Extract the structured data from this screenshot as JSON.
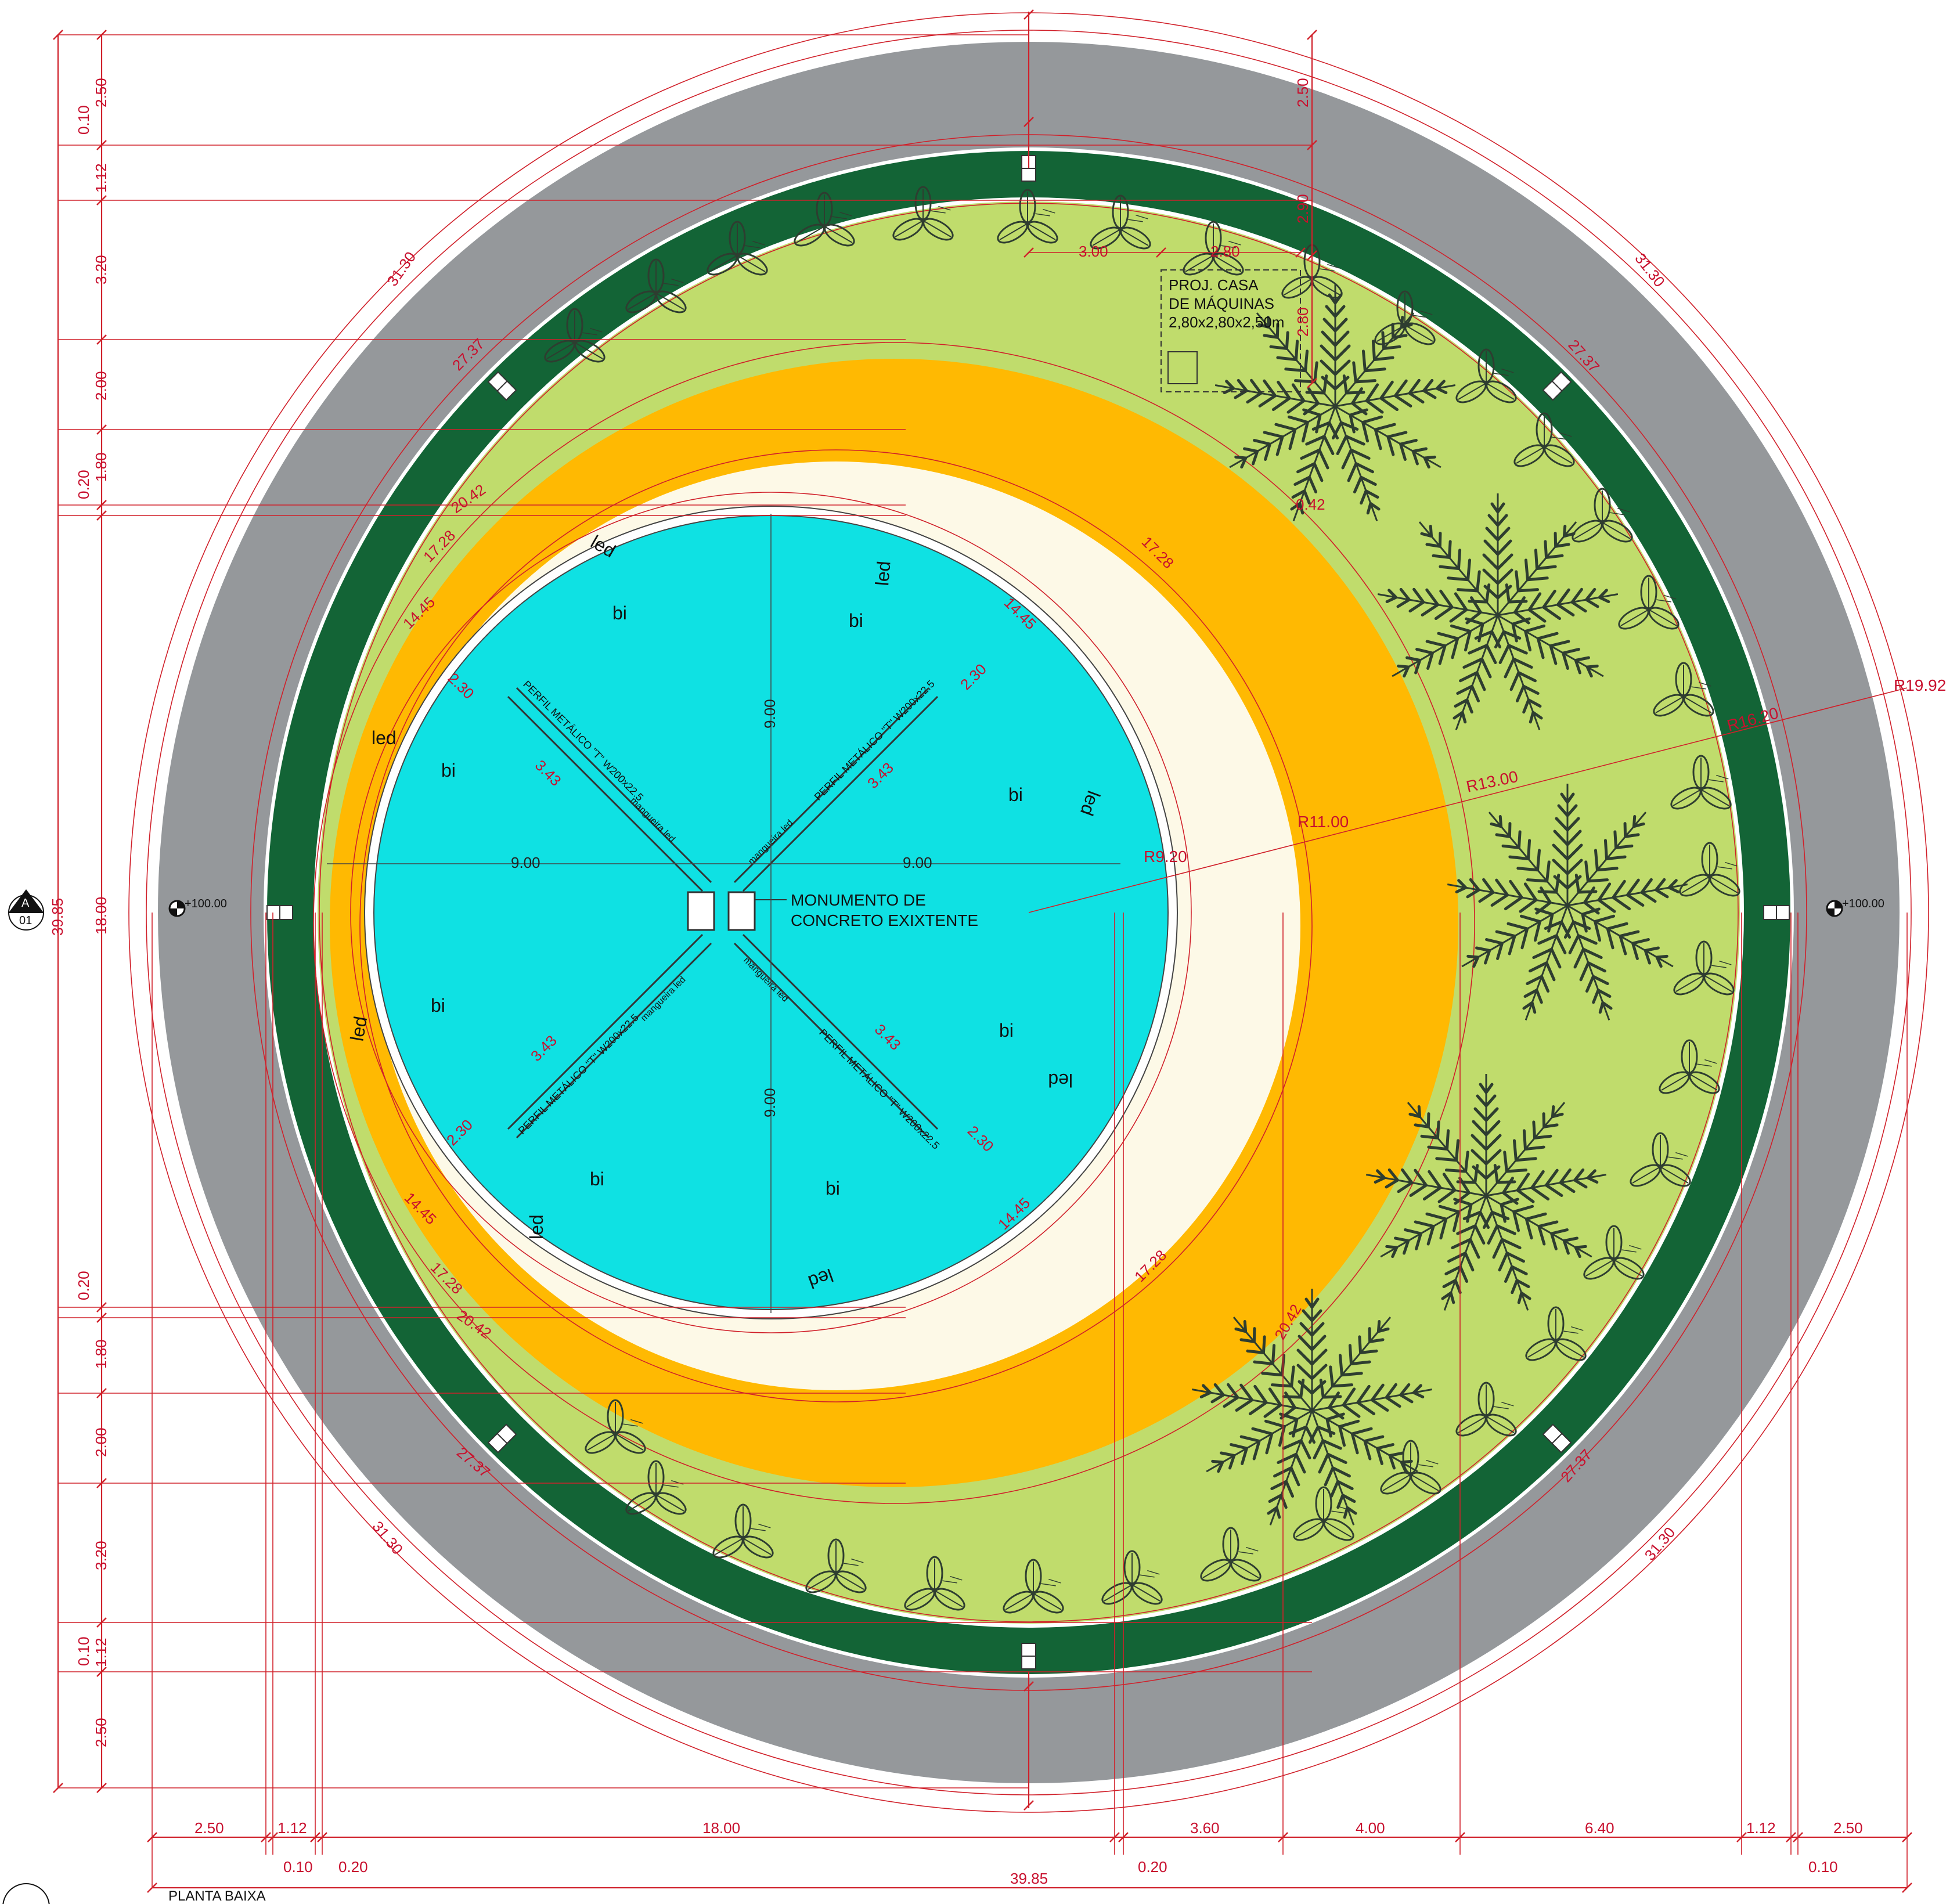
{
  "drawing": {
    "view_title": "PLANTA BAIXA",
    "section_marker": {
      "letter": "A",
      "sheet": "01"
    },
    "level_left": "+100.00",
    "level_right": "+100.00",
    "monument_label_1": "MONUMENTO DE",
    "monument_label_2": "CONCRETO EXIXTENTE",
    "machine_room_1": "PROJ. CASA",
    "machine_room_2": "DE MÁQUINAS",
    "machine_room_3": "2,80x2,80x2,50m",
    "beam_label": "PERFIL METÁLICO \"T\" W200x22.5",
    "hose_label": "mangueira led",
    "led_label": "led",
    "bi_label": "bi"
  },
  "colors": {
    "road": "#95989b",
    "dark_green": "#136436",
    "light_green": "#c0dc6c",
    "orange": "#ffb902",
    "cream": "#fdf9e7",
    "water": "#0fe1e3",
    "dim_red": "#c8102e",
    "plants": "#2e3d30"
  },
  "dimensions": {
    "arc_31_30": "31.30",
    "arc_27_37": "27.37",
    "arc_20_42": "20.42",
    "arc_17_28": "17.28",
    "arc_14_45": "14.45",
    "r19_92": "R19.92",
    "r16_20": "R16.20",
    "r13_00": "R13.00",
    "r11_00": "R11.00",
    "r9_20": "R9.20",
    "d2_30": "2.30",
    "d3_43": "3.43",
    "d9_00": "9.00",
    "d2_80": "2.80",
    "d3_00": "3.00",
    "d2_90": "2.90",
    "d0_42": "0.42",
    "left": [
      "0.10",
      "2.50",
      "1.12",
      "3.20",
      "2.00",
      "1.80",
      "0.20",
      "18.00",
      "39.85",
      "0.20",
      "1.80",
      "2.00",
      "3.20",
      "0.10",
      "1.12",
      "2.50"
    ],
    "top": [
      "2.50",
      "2.90"
    ],
    "bottom": [
      "2.50",
      "1.12",
      "0.10",
      "0.20",
      "18.00",
      "0.20",
      "3.60",
      "4.00",
      "6.40",
      "1.12",
      "2.50",
      "0.10",
      "39.85"
    ]
  }
}
